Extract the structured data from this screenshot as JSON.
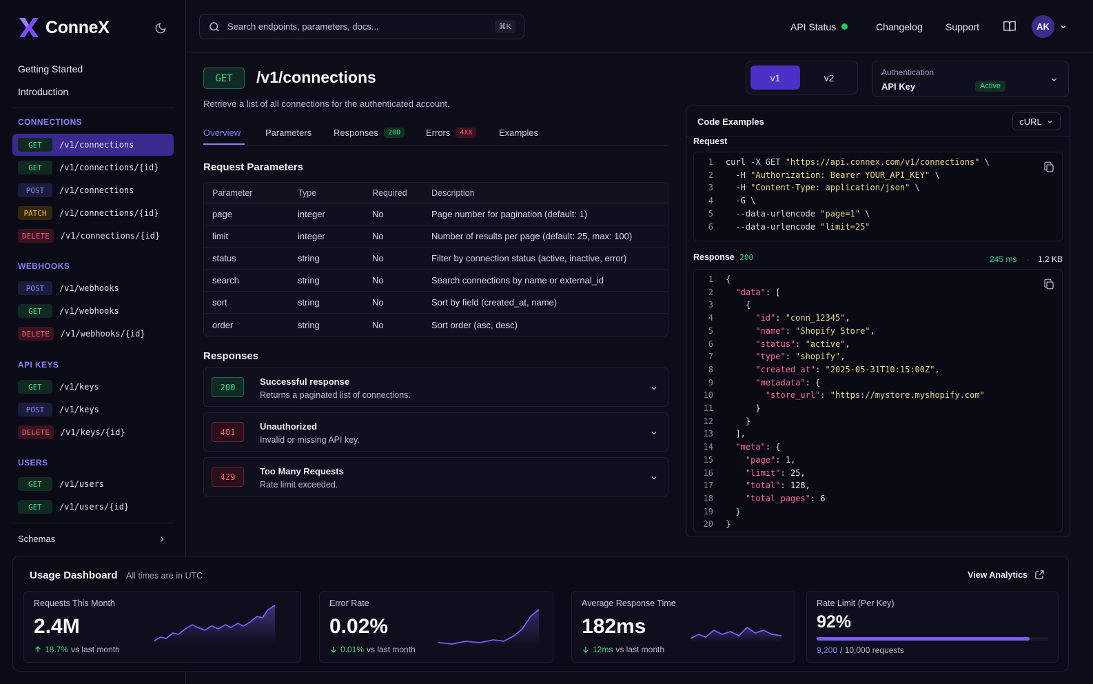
{
  "app": {
    "name": "ConneX"
  },
  "sidebar": {
    "top_links": [
      "Getting Started",
      "Introduction"
    ],
    "sections": [
      {
        "title": "CONNECTIONS",
        "items": [
          {
            "method": "GET",
            "path": "/v1/connections",
            "active": true
          },
          {
            "method": "GET",
            "path": "/v1/connections/{id}"
          },
          {
            "method": "POST",
            "path": "/v1/connections"
          },
          {
            "method": "PATCH",
            "path": "/v1/connections/{id}"
          },
          {
            "method": "DELETE",
            "path": "/v1/connections/{id}"
          }
        ]
      },
      {
        "title": "WEBHOOKS",
        "items": [
          {
            "method": "POST",
            "path": "/v1/webhooks"
          },
          {
            "method": "GET",
            "path": "/v1/webhooks"
          },
          {
            "method": "DELETE",
            "path": "/v1/webhooks/{id}"
          }
        ]
      },
      {
        "title": "API KEYS",
        "items": [
          {
            "method": "GET",
            "path": "/v1/keys"
          },
          {
            "method": "POST",
            "path": "/v1/keys"
          },
          {
            "method": "DELETE",
            "path": "/v1/keys/{id}"
          }
        ]
      },
      {
        "title": "USERS",
        "items": [
          {
            "method": "GET",
            "path": "/v1/users"
          },
          {
            "method": "GET",
            "path": "/v1/users/{id}"
          }
        ]
      }
    ],
    "schemas_label": "Schemas"
  },
  "header": {
    "search_placeholder": "Search endpoints, parameters, docs...",
    "shortcut": "⌘K",
    "api_status": "API Status",
    "changelog": "Changelog",
    "support": "Support",
    "avatar_initials": "AK"
  },
  "endpoint": {
    "method": "GET",
    "path": "/v1/connections",
    "description": "Retrieve a list of all connections for the authenticated account."
  },
  "versions": {
    "v1": "v1",
    "v2": "v2"
  },
  "auth": {
    "label": "Authentication",
    "value": "API Key",
    "status": "Active"
  },
  "tabs": [
    {
      "label": "Overview",
      "badge": ""
    },
    {
      "label": "Parameters",
      "badge": ""
    },
    {
      "label": "Responses",
      "badge": "200"
    },
    {
      "label": "Errors",
      "badge": "4XX"
    },
    {
      "label": "Examples",
      "badge": ""
    }
  ],
  "request_params": {
    "title": "Request Parameters",
    "columns": [
      "Parameter",
      "Type",
      "Required",
      "Description"
    ],
    "rows": [
      [
        "page",
        "integer",
        "No",
        "Page number for pagination (default: 1)"
      ],
      [
        "limit",
        "integer",
        "No",
        "Number of results per page (default: 25, max: 100)"
      ],
      [
        "status",
        "string",
        "No",
        "Filter by connection status (active, inactive, error)"
      ],
      [
        "search",
        "string",
        "No",
        "Search connections by name or external_id"
      ],
      [
        "sort",
        "string",
        "No",
        "Sort by field (created_at, name)"
      ],
      [
        "order",
        "string",
        "No",
        "Sort order (asc, desc)"
      ]
    ]
  },
  "responses": {
    "title": "Responses",
    "items": [
      {
        "code": "200",
        "title": "Successful response",
        "desc": "Returns a paginated list of connections."
      },
      {
        "code": "401",
        "title": "Unauthorized",
        "desc": "Invalid or missing API key."
      },
      {
        "code": "429",
        "title": "Too Many Requests",
        "desc": "Rate limit exceeded."
      }
    ]
  },
  "code_examples": {
    "title": "Code Examples",
    "language": "cURL",
    "request_label": "Request",
    "request_lines": [
      [
        [
          "p",
          "curl -X GET "
        ],
        [
          "s",
          "\"https://api.connex.com/v1/connections\""
        ],
        [
          "p",
          " \\"
        ]
      ],
      [
        [
          "p",
          "  -H "
        ],
        [
          "s",
          "\"Authorization: Bearer YOUR_API_KEY\""
        ],
        [
          "p",
          " \\"
        ]
      ],
      [
        [
          "p",
          "  -H "
        ],
        [
          "s",
          "\"Content-Type: application/json\""
        ],
        [
          "p",
          " \\"
        ]
      ],
      [
        [
          "p",
          "  -G \\"
        ]
      ],
      [
        [
          "p",
          "  --data-urlencode "
        ],
        [
          "s",
          "\"page=1\""
        ],
        [
          "p",
          " \\"
        ]
      ],
      [
        [
          "p",
          "  --data-urlencode "
        ],
        [
          "s",
          "\"limit=25\""
        ]
      ]
    ],
    "response_label": "Response",
    "response_code": "200",
    "response_time": "245 ms",
    "response_size": "1.2 KB",
    "response_lines": [
      [
        [
          "p",
          "{"
        ]
      ],
      [
        [
          "p",
          "  "
        ],
        [
          "k",
          "\"data\""
        ],
        [
          "p",
          ": ["
        ]
      ],
      [
        [
          "p",
          "    {"
        ]
      ],
      [
        [
          "p",
          "      "
        ],
        [
          "k",
          "\"id\""
        ],
        [
          "p",
          ": "
        ],
        [
          "s",
          "\"conn_12345\""
        ],
        [
          "p",
          ","
        ]
      ],
      [
        [
          "p",
          "      "
        ],
        [
          "k",
          "\"name\""
        ],
        [
          "p",
          ": "
        ],
        [
          "s",
          "\"Shopify Store\""
        ],
        [
          "p",
          ","
        ]
      ],
      [
        [
          "p",
          "      "
        ],
        [
          "k",
          "\"status\""
        ],
        [
          "p",
          ": "
        ],
        [
          "s",
          "\"active\""
        ],
        [
          "p",
          ","
        ]
      ],
      [
        [
          "p",
          "      "
        ],
        [
          "k",
          "\"type\""
        ],
        [
          "p",
          ": "
        ],
        [
          "s",
          "\"shopify\""
        ],
        [
          "p",
          ","
        ]
      ],
      [
        [
          "p",
          "      "
        ],
        [
          "k",
          "\"created_at\""
        ],
        [
          "p",
          ": "
        ],
        [
          "s",
          "\"2025-05-31T10:15:00Z\""
        ],
        [
          "p",
          ","
        ]
      ],
      [
        [
          "p",
          "      "
        ],
        [
          "k",
          "\"metadata\""
        ],
        [
          "p",
          ": {"
        ]
      ],
      [
        [
          "p",
          "        "
        ],
        [
          "k",
          "\"store_url\""
        ],
        [
          "p",
          ": "
        ],
        [
          "s",
          "\"https://mystore.myshopify.com\""
        ]
      ],
      [
        [
          "p",
          "      }"
        ]
      ],
      [
        [
          "p",
          "    }"
        ]
      ],
      [
        [
          "p",
          "  ],"
        ]
      ],
      [
        [
          "p",
          "  "
        ],
        [
          "k",
          "\"meta\""
        ],
        [
          "p",
          ": {"
        ]
      ],
      [
        [
          "p",
          "    "
        ],
        [
          "k",
          "\"page\""
        ],
        [
          "p",
          ": "
        ],
        [
          "n",
          "1"
        ],
        [
          "p",
          ","
        ]
      ],
      [
        [
          "p",
          "    "
        ],
        [
          "k",
          "\"limit\""
        ],
        [
          "p",
          ": "
        ],
        [
          "n",
          "25"
        ],
        [
          "p",
          ","
        ]
      ],
      [
        [
          "p",
          "    "
        ],
        [
          "k",
          "\"total\""
        ],
        [
          "p",
          ": "
        ],
        [
          "n",
          "128"
        ],
        [
          "p",
          ","
        ]
      ],
      [
        [
          "p",
          "    "
        ],
        [
          "k",
          "\"total_pages\""
        ],
        [
          "p",
          ": "
        ],
        [
          "n",
          "6"
        ]
      ],
      [
        [
          "p",
          "  }"
        ]
      ],
      [
        [
          "p",
          "}"
        ]
      ]
    ]
  },
  "dashboard": {
    "title": "Usage Dashboard",
    "subtitle": "All times are in UTC",
    "link": "View Analytics",
    "cards": [
      {
        "label": "Requests This Month",
        "value": "2.4M",
        "change": "18.7%",
        "change_suffix": "vs last month",
        "direction": "up"
      },
      {
        "label": "Error Rate",
        "value": "0.02%",
        "change": "0.01%",
        "change_suffix": "vs last month",
        "direction": "down"
      },
      {
        "label": "Average Response Time",
        "value": "182ms",
        "change": "12ms",
        "change_suffix": "vs last month",
        "direction": "down"
      },
      {
        "label": "Rate Limit (Per Key)",
        "value": "92%",
        "used": "9,200",
        "total": "/ 10,000 requests",
        "fraction": 0.92
      }
    ]
  },
  "colors": {
    "accent": "#8b7cf6",
    "success": "#3fd88a",
    "danger": "#ff5a7a",
    "warning": "#f0b43c"
  }
}
